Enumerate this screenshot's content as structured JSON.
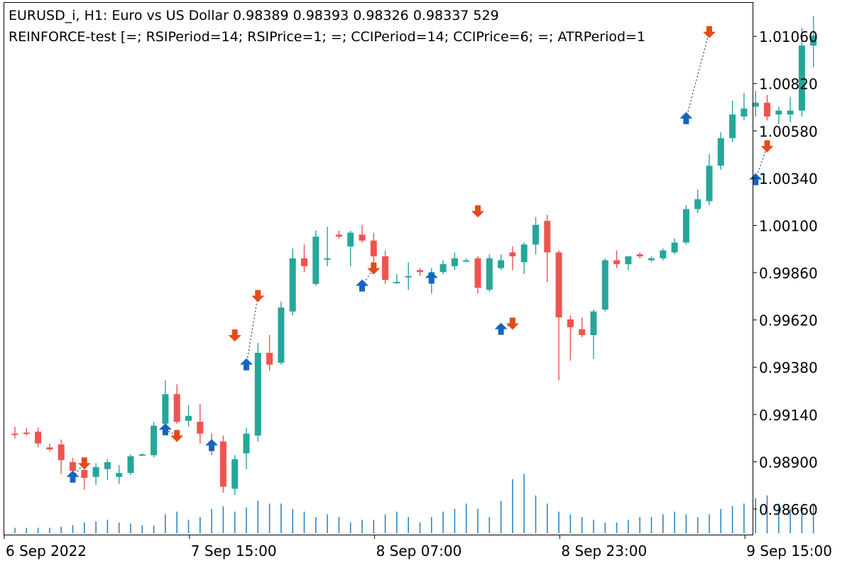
{
  "header": {
    "line1": "EURUSD_i, H1:  Euro vs US Dollar  0.98389 0.98393 0.98326 0.98337  529",
    "line2": "REINFORCE-test [=; RSIPeriod=14; RSIPrice=1; =; CCIPeriod=14; CCIPrice=6; =; ATRPeriod=1"
  },
  "colors": {
    "bull": "#26a69a",
    "bear": "#ef5350",
    "buy_arrow": "#1565c0",
    "sell_arrow": "#e64a19",
    "volume": "#2e86c1",
    "axis": "#000000",
    "dotted": "#1a3d7c"
  },
  "chart_data": {
    "type": "candlestick",
    "symbol": "EURUSD_i",
    "timeframe": "H1",
    "title": "Euro vs US Dollar",
    "ylim": [
      0.9853,
      1.0123
    ],
    "y_ticks": [
      {
        "value": 1.0106,
        "label": "1.01060"
      },
      {
        "value": 1.0082,
        "label": "1.00820"
      },
      {
        "value": 1.0058,
        "label": "1.00580"
      },
      {
        "value": 1.0034,
        "label": "1.00340"
      },
      {
        "value": 1.001,
        "label": "1.00100"
      },
      {
        "value": 0.9986,
        "label": "0.99860"
      },
      {
        "value": 0.9962,
        "label": "0.99620"
      },
      {
        "value": 0.9938,
        "label": "0.99380"
      },
      {
        "value": 0.9914,
        "label": "0.99140"
      },
      {
        "value": 0.989,
        "label": "0.98900"
      },
      {
        "value": 0.9866,
        "label": "0.98660"
      }
    ],
    "x_ticks": [
      {
        "index": 0,
        "label": "6 Sep 2022"
      },
      {
        "index": 16,
        "label": "7 Sep 15:00"
      },
      {
        "index": 32,
        "label": "8 Sep 07:00"
      },
      {
        "index": 48,
        "label": "8 Sep 23:00"
      },
      {
        "index": 64,
        "label": "9 Sep 15:00"
      }
    ],
    "candles": [
      {
        "o": 0.99043,
        "h": 0.99078,
        "l": 0.99018,
        "c": 0.99038
      },
      {
        "o": 0.99048,
        "h": 0.99073,
        "l": 0.99033,
        "c": 0.99043
      },
      {
        "o": 0.99053,
        "h": 0.99073,
        "l": 0.98973,
        "c": 0.98993
      },
      {
        "o": 0.98973,
        "h": 0.98993,
        "l": 0.98953,
        "c": 0.98963
      },
      {
        "o": 0.98988,
        "h": 0.99013,
        "l": 0.98838,
        "c": 0.98908
      },
      {
        "o": 0.98898,
        "h": 0.98918,
        "l": 0.98828,
        "c": 0.98853
      },
      {
        "o": 0.98858,
        "h": 0.98918,
        "l": 0.98758,
        "c": 0.98818
      },
      {
        "o": 0.98823,
        "h": 0.98893,
        "l": 0.98783,
        "c": 0.98873
      },
      {
        "o": 0.98863,
        "h": 0.98913,
        "l": 0.98808,
        "c": 0.98898
      },
      {
        "o": 0.98823,
        "h": 0.98883,
        "l": 0.98788,
        "c": 0.98843
      },
      {
        "o": 0.98843,
        "h": 0.98938,
        "l": 0.98833,
        "c": 0.98928
      },
      {
        "o": 0.98933,
        "h": 0.98943,
        "l": 0.98928,
        "c": 0.98938
      },
      {
        "o": 0.98933,
        "h": 0.99103,
        "l": 0.98923,
        "c": 0.99083
      },
      {
        "o": 0.99093,
        "h": 0.99313,
        "l": 0.99083,
        "c": 0.99243
      },
      {
        "o": 0.99243,
        "h": 0.99293,
        "l": 0.99093,
        "c": 0.99103
      },
      {
        "o": 0.99108,
        "h": 0.99188,
        "l": 0.99078,
        "c": 0.99133
      },
      {
        "o": 0.99103,
        "h": 0.99193,
        "l": 0.98993,
        "c": 0.99043
      },
      {
        "o": 0.99003,
        "h": 0.99043,
        "l": 0.98933,
        "c": 0.98983
      },
      {
        "o": 0.99003,
        "h": 0.99033,
        "l": 0.98743,
        "c": 0.98773
      },
      {
        "o": 0.98763,
        "h": 0.98933,
        "l": 0.98733,
        "c": 0.98913
      },
      {
        "o": 0.98943,
        "h": 0.99073,
        "l": 0.98863,
        "c": 0.99043
      },
      {
        "o": 0.99033,
        "h": 0.99503,
        "l": 0.99003,
        "c": 0.99453
      },
      {
        "o": 0.99453,
        "h": 0.99543,
        "l": 0.99363,
        "c": 0.99393
      },
      {
        "o": 0.99403,
        "h": 0.99713,
        "l": 0.99393,
        "c": 0.99683
      },
      {
        "o": 0.99663,
        "h": 0.99983,
        "l": 0.99643,
        "c": 0.99933
      },
      {
        "o": 0.99933,
        "h": 1.00003,
        "l": 0.99863,
        "c": 0.99893
      },
      {
        "o": 0.99803,
        "h": 1.00073,
        "l": 0.99793,
        "c": 1.00043
      },
      {
        "o": 0.99933,
        "h": 1.00093,
        "l": 0.99893,
        "c": 0.99933
      },
      {
        "o": 1.00053,
        "h": 1.00073,
        "l": 1.00033,
        "c": 1.00043
      },
      {
        "o": 0.99993,
        "h": 1.00073,
        "l": 0.99893,
        "c": 1.00063
      },
      {
        "o": 1.00053,
        "h": 1.00103,
        "l": 1.00013,
        "c": 1.00023
      },
      {
        "o": 1.00023,
        "h": 1.00063,
        "l": 0.99913,
        "c": 0.99943
      },
      {
        "o": 0.99943,
        "h": 0.99973,
        "l": 0.99803,
        "c": 0.99823
      },
      {
        "o": 0.99813,
        "h": 0.99853,
        "l": 0.99803,
        "c": 0.99813
      },
      {
        "o": 0.99843,
        "h": 0.99913,
        "l": 0.99773,
        "c": 0.99843
      },
      {
        "o": 0.99873,
        "h": 0.99883,
        "l": 0.99843,
        "c": 0.99863
      },
      {
        "o": 0.99843,
        "h": 0.99883,
        "l": 0.99753,
        "c": 0.99863
      },
      {
        "o": 0.99863,
        "h": 0.99923,
        "l": 0.99853,
        "c": 0.99903
      },
      {
        "o": 0.99893,
        "h": 0.99963,
        "l": 0.99873,
        "c": 0.99933
      },
      {
        "o": 0.99923,
        "h": 0.99933,
        "l": 0.99913,
        "c": 0.99923
      },
      {
        "o": 0.99933,
        "h": 0.99943,
        "l": 0.99753,
        "c": 0.99783
      },
      {
        "o": 0.99773,
        "h": 0.99953,
        "l": 0.99763,
        "c": 0.99933
      },
      {
        "o": 0.99883,
        "h": 0.99953,
        "l": 0.99873,
        "c": 0.99923
      },
      {
        "o": 0.99963,
        "h": 0.99993,
        "l": 0.99873,
        "c": 0.99943
      },
      {
        "o": 0.99913,
        "h": 1.00013,
        "l": 0.99853,
        "c": 1.00003
      },
      {
        "o": 1.00003,
        "h": 1.00143,
        "l": 0.99953,
        "c": 1.00103
      },
      {
        "o": 1.00123,
        "h": 1.00153,
        "l": 0.99813,
        "c": 0.99963
      },
      {
        "o": 0.99963,
        "h": 0.99973,
        "l": 0.99313,
        "c": 0.99633
      },
      {
        "o": 0.99623,
        "h": 0.99643,
        "l": 0.99413,
        "c": 0.99583
      },
      {
        "o": 0.99573,
        "h": 0.99633,
        "l": 0.99533,
        "c": 0.99543
      },
      {
        "o": 0.99543,
        "h": 0.99673,
        "l": 0.99423,
        "c": 0.99663
      },
      {
        "o": 0.99673,
        "h": 0.99933,
        "l": 0.99663,
        "c": 0.99923
      },
      {
        "o": 0.99923,
        "h": 0.99973,
        "l": 0.99883,
        "c": 0.99903
      },
      {
        "o": 0.99903,
        "h": 0.99943,
        "l": 0.99873,
        "c": 0.99943
      },
      {
        "o": 0.99953,
        "h": 0.99963,
        "l": 0.99933,
        "c": 0.99943
      },
      {
        "o": 0.99923,
        "h": 0.99943,
        "l": 0.99913,
        "c": 0.99933
      },
      {
        "o": 0.99933,
        "h": 0.99983,
        "l": 0.99923,
        "c": 0.99973
      },
      {
        "o": 0.99963,
        "h": 1.00033,
        "l": 0.99953,
        "c": 1.00013
      },
      {
        "o": 1.00013,
        "h": 1.00203,
        "l": 1.00003,
        "c": 1.00183
      },
      {
        "o": 1.00183,
        "h": 1.00283,
        "l": 1.00163,
        "c": 1.00233
      },
      {
        "o": 1.00223,
        "h": 1.00463,
        "l": 1.00203,
        "c": 1.00403
      },
      {
        "o": 1.00403,
        "h": 1.00573,
        "l": 1.00383,
        "c": 1.00543
      },
      {
        "o": 1.00543,
        "h": 1.00733,
        "l": 1.00523,
        "c": 1.00663
      },
      {
        "o": 1.00653,
        "h": 1.00773,
        "l": 1.00633,
        "c": 1.00693
      },
      {
        "o": 1.00703,
        "h": 1.00783,
        "l": 1.00653,
        "c": 1.00723
      },
      {
        "o": 1.00723,
        "h": 1.00763,
        "l": 1.00633,
        "c": 1.00653
      },
      {
        "o": 1.00663,
        "h": 1.00703,
        "l": 1.00613,
        "c": 1.00683
      },
      {
        "o": 1.00663,
        "h": 1.00753,
        "l": 1.00623,
        "c": 1.00683
      },
      {
        "o": 1.00683,
        "h": 1.01103,
        "l": 1.00653,
        "c": 1.01013
      },
      {
        "o": 1.01013,
        "h": 1.01163,
        "l": 1.00903,
        "c": 1.01063
      }
    ],
    "volume": [
      0.1,
      0.1,
      0.1,
      0.1,
      0.12,
      0.15,
      0.2,
      0.22,
      0.25,
      0.2,
      0.18,
      0.15,
      0.14,
      0.35,
      0.4,
      0.25,
      0.3,
      0.45,
      0.5,
      0.4,
      0.48,
      0.6,
      0.55,
      0.55,
      0.45,
      0.4,
      0.3,
      0.35,
      0.3,
      0.2,
      0.25,
      0.25,
      0.35,
      0.4,
      0.3,
      0.2,
      0.3,
      0.4,
      0.45,
      0.55,
      0.45,
      0.3,
      0.6,
      1.0,
      1.1,
      0.7,
      0.55,
      0.4,
      0.35,
      0.3,
      0.25,
      0.2,
      0.2,
      0.25,
      0.3,
      0.3,
      0.35,
      0.4,
      0.35,
      0.3,
      0.35,
      0.45,
      0.5,
      0.55,
      0.65,
      0.7,
      0.55,
      0.45,
      0.5,
      0.55
    ],
    "buy_signals": [
      {
        "index": 5,
        "price": 0.98823
      },
      {
        "index": 13,
        "price": 0.99063
      },
      {
        "index": 17,
        "price": 0.98983
      },
      {
        "index": 20,
        "price": 0.99393
      },
      {
        "index": 30,
        "price": 0.99793
      },
      {
        "index": 36,
        "price": 0.99833
      },
      {
        "index": 42,
        "price": 0.99573
      },
      {
        "index": 58,
        "price": 1.00643
      },
      {
        "index": 64,
        "price": 1.00333
      }
    ],
    "sell_signals": [
      {
        "index": 6,
        "price": 0.98893
      },
      {
        "index": 14,
        "price": 0.99033
      },
      {
        "index": 19,
        "price": 0.99543
      },
      {
        "index": 21,
        "price": 0.99743
      },
      {
        "index": 31,
        "price": 0.99883
      },
      {
        "index": 40,
        "price": 1.00173
      },
      {
        "index": 43,
        "price": 0.99603
      },
      {
        "index": 60,
        "price": 1.01083
      },
      {
        "index": 65,
        "price": 1.00503
      }
    ]
  }
}
